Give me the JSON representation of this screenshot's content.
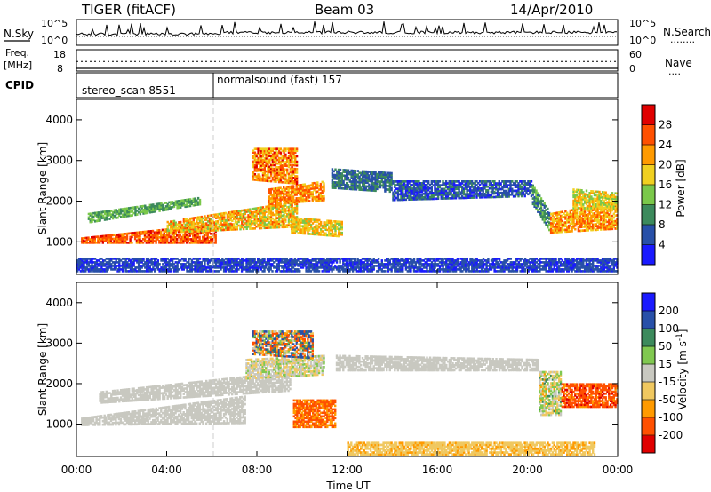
{
  "header": {
    "radar_label": "TIGER (fitACF)",
    "beam_label": "Beam 03",
    "date_label": "14/Apr/2010"
  },
  "top_panels": {
    "noise": {
      "left_label": "N.Sky",
      "right_label": "N.Search",
      "left_ticks": [
        "10^5",
        "10^0"
      ],
      "right_ticks": [
        "10^5",
        "10^0"
      ],
      "right_legend_glyph": "........"
    },
    "freq": {
      "left_label_line1": "Freq.",
      "left_label_line2": "[MHz]",
      "right_label": "Nave",
      "left_ticks": [
        "18",
        "8"
      ],
      "right_ticks": [
        "60",
        "0"
      ],
      "right_legend_glyph": "....",
      "freq_level_mhz": 14,
      "nave_level": 1
    },
    "cpid": {
      "label": "CPID",
      "segments": [
        {
          "text": "stereo_scan 8551",
          "start_hour": 0,
          "end_hour": 6
        },
        {
          "text": "normalsound (fast) 157",
          "start_hour": 6,
          "end_hour": 24
        }
      ]
    }
  },
  "chart_data": [
    {
      "type": "heatmap",
      "name": "power",
      "ylabel": "Slant Range [km]",
      "xlim": [
        0,
        24
      ],
      "ylim": [
        200,
        4500
      ],
      "yticks": [
        "1000",
        "2000",
        "3000",
        "4000"
      ],
      "colorbar": {
        "label": "Power [dB]",
        "range": [
          0,
          32
        ],
        "ticks": [
          "4",
          "8",
          "12",
          "16",
          "20",
          "24",
          "28"
        ],
        "colors": [
          "#1a1aff",
          "#2850a8",
          "#3c8a5c",
          "#7ac84a",
          "#f0d020",
          "#ff9a00",
          "#ff5000",
          "#e00000"
        ]
      },
      "regions": [
        {
          "t": [
            0.2,
            6.2
          ],
          "r": [
            950,
            1100
          ],
          "r_end": [
            950,
            1450
          ],
          "v": [
            22,
            30
          ]
        },
        {
          "t": [
            4.0,
            9.8
          ],
          "r": [
            1200,
            1500
          ],
          "r_end": [
            1350,
            2000
          ],
          "v": [
            14,
            26
          ]
        },
        {
          "t": [
            0.5,
            5.5
          ],
          "r": [
            1450,
            1700
          ],
          "r_end": [
            1900,
            2100
          ],
          "v": [
            8,
            16
          ]
        },
        {
          "t": [
            8.5,
            11.0
          ],
          "r": [
            1900,
            2300
          ],
          "r_end": [
            2000,
            2500
          ],
          "v": [
            18,
            28
          ]
        },
        {
          "t": [
            9.5,
            11.8
          ],
          "r": [
            1200,
            1600
          ],
          "r_end": [
            1100,
            1500
          ],
          "v": [
            14,
            24
          ]
        },
        {
          "t": [
            7.8,
            9.8
          ],
          "r": [
            2500,
            3300
          ],
          "r_end": [
            2400,
            3300
          ],
          "v": [
            16,
            30
          ]
        },
        {
          "t": [
            11.3,
            14.0
          ],
          "r": [
            2300,
            2800
          ],
          "r_end": [
            2200,
            2700
          ],
          "v": [
            4,
            12
          ]
        },
        {
          "t": [
            14.0,
            20.2
          ],
          "r": [
            2000,
            2500
          ],
          "r_end": [
            2100,
            2500
          ],
          "v": [
            2,
            10
          ]
        },
        {
          "t": [
            20.2,
            21.0
          ],
          "r": [
            1900,
            2400
          ],
          "r_end": [
            1200,
            1700
          ],
          "v": [
            6,
            14
          ]
        },
        {
          "t": [
            21.0,
            24.0
          ],
          "r": [
            1200,
            1700
          ],
          "r_end": [
            1300,
            2000
          ],
          "v": [
            16,
            28
          ]
        },
        {
          "t": [
            22.0,
            24.0
          ],
          "r": [
            1800,
            2300
          ],
          "r_end": [
            1800,
            2200
          ],
          "v": [
            12,
            22
          ]
        },
        {
          "t": [
            0.0,
            24.0
          ],
          "r": [
            250,
            600
          ],
          "r_end": [
            250,
            600
          ],
          "v": [
            2,
            8
          ]
        }
      ]
    },
    {
      "type": "heatmap",
      "name": "velocity",
      "ylabel": "Slant Range [km]",
      "xlabel": "Time UT",
      "xlim": [
        0,
        24
      ],
      "ylim": [
        200,
        4500
      ],
      "yticks": [
        "1000",
        "2000",
        "3000",
        "4000"
      ],
      "xticks": [
        "00:00",
        "04:00",
        "08:00",
        "12:00",
        "16:00",
        "20:00",
        "00:00"
      ],
      "colorbar": {
        "label": "Velocity [m s^-1]",
        "range": [
          -250,
          250
        ],
        "ticks": [
          "200",
          "100",
          "50",
          "15",
          "-15",
          "-50",
          "-100",
          "-200"
        ],
        "colors": [
          "#e00000",
          "#ff5000",
          "#ff9a00",
          "#f0c860",
          "#c8c8c0",
          "#80c850",
          "#3c8a5c",
          "#2850a8",
          "#1a1aff"
        ]
      },
      "regions": [
        {
          "t": [
            0.2,
            7.5
          ],
          "r": [
            950,
            1150
          ],
          "r_end": [
            1000,
            1700
          ],
          "v": [
            -10,
            10
          ]
        },
        {
          "t": [
            1.0,
            9.5
          ],
          "r": [
            1500,
            1800
          ],
          "r_end": [
            1800,
            2300
          ],
          "v": [
            -10,
            10
          ]
        },
        {
          "t": [
            7.5,
            11.0
          ],
          "r": [
            2100,
            2600
          ],
          "r_end": [
            2200,
            2700
          ],
          "v": [
            -40,
            30
          ]
        },
        {
          "t": [
            9.6,
            11.5
          ],
          "r": [
            900,
            1600
          ],
          "r_end": [
            900,
            1600
          ],
          "v": [
            -200,
            -50
          ]
        },
        {
          "t": [
            7.8,
            10.5
          ],
          "r": [
            2700,
            3300
          ],
          "r_end": [
            2600,
            3300
          ],
          "v": [
            -180,
            180
          ]
        },
        {
          "t": [
            11.5,
            20.5
          ],
          "r": [
            2300,
            2700
          ],
          "r_end": [
            2300,
            2600
          ],
          "v": [
            -10,
            10
          ]
        },
        {
          "t": [
            20.5,
            21.5
          ],
          "r": [
            1200,
            2300
          ],
          "r_end": [
            1200,
            2300
          ],
          "v": [
            -60,
            60
          ]
        },
        {
          "t": [
            21.5,
            24.0
          ],
          "r": [
            1400,
            2000
          ],
          "r_end": [
            1400,
            2000
          ],
          "v": [
            -220,
            -80
          ]
        },
        {
          "t": [
            12.0,
            23.0
          ],
          "r": [
            220,
            550
          ],
          "r_end": [
            220,
            550
          ],
          "v": [
            -60,
            -20
          ]
        }
      ]
    }
  ]
}
